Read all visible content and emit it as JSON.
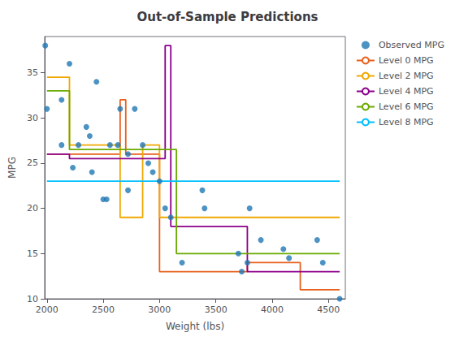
{
  "chart_data": {
    "type": "line",
    "title": "Out-of-Sample Predictions",
    "xlabel": "Weight (lbs)",
    "ylabel": "MPG",
    "xlim": [
      1980,
      4650
    ],
    "ylim": [
      10,
      39
    ],
    "xticks": [
      2000,
      2500,
      3000,
      3500,
      4000,
      4500
    ],
    "yticks": [
      10,
      15,
      20,
      25,
      30,
      35
    ],
    "grid": false,
    "legend": "upper right",
    "series": [
      {
        "name": "Observed MPG",
        "type": "scatter",
        "color": "#1f77b4",
        "marker": "circle",
        "x": [
          1985,
          2000,
          2130,
          2130,
          2200,
          2230,
          2280,
          2350,
          2380,
          2400,
          2440,
          2500,
          2530,
          2560,
          2630,
          2650,
          2720,
          2720,
          2780,
          2850,
          2900,
          2940,
          3000,
          3050,
          3100,
          3200,
          3380,
          3400,
          3700,
          3730,
          3780,
          3800,
          3900,
          4100,
          4150,
          4400,
          4450,
          4600
        ],
        "values": [
          38,
          31,
          32,
          27,
          36,
          24.5,
          27,
          29,
          28,
          24,
          34,
          21,
          21,
          27,
          27,
          31,
          26,
          22,
          31,
          27,
          25,
          24,
          23,
          20,
          19,
          14,
          22,
          20,
          15,
          13,
          14,
          20,
          16.5,
          15.5,
          14.5,
          16.5,
          14,
          10
        ]
      },
      {
        "name": "Level 0 MPG",
        "type": "line",
        "color": "#e8601c",
        "x": [
          2000,
          2200,
          2200,
          2650,
          2650,
          2700,
          2700,
          3000,
          3000,
          3780,
          3780,
          4250,
          4250,
          4600
        ],
        "values": [
          26,
          26,
          26,
          26,
          32,
          32,
          26,
          26,
          13,
          13,
          14,
          14,
          11,
          11
        ]
      },
      {
        "name": "Level 2 MPG",
        "type": "line",
        "color": "#f0a800",
        "x": [
          2000,
          2200,
          2200,
          2650,
          2650,
          2850,
          2850,
          3000,
          3000,
          4600
        ],
        "values": [
          34.5,
          34.5,
          27,
          27,
          19,
          19,
          27,
          27,
          19,
          19
        ]
      },
      {
        "name": "Level 4 MPG",
        "type": "line",
        "color": "#8b008b",
        "x": [
          2000,
          2200,
          2200,
          3050,
          3050,
          3100,
          3100,
          3780,
          3780,
          4600
        ],
        "values": [
          26,
          26,
          25.5,
          25.5,
          38,
          38,
          18,
          18,
          13,
          13
        ]
      },
      {
        "name": "Level 6 MPG",
        "type": "line",
        "color": "#6aaa00",
        "x": [
          2000,
          2200,
          2200,
          3150,
          3150,
          4600
        ],
        "values": [
          33,
          33,
          26.5,
          26.5,
          15,
          15
        ]
      },
      {
        "name": "Level 8 MPG",
        "type": "line",
        "color": "#00bfff",
        "x": [
          2000,
          4600
        ],
        "values": [
          23,
          23
        ]
      }
    ]
  }
}
